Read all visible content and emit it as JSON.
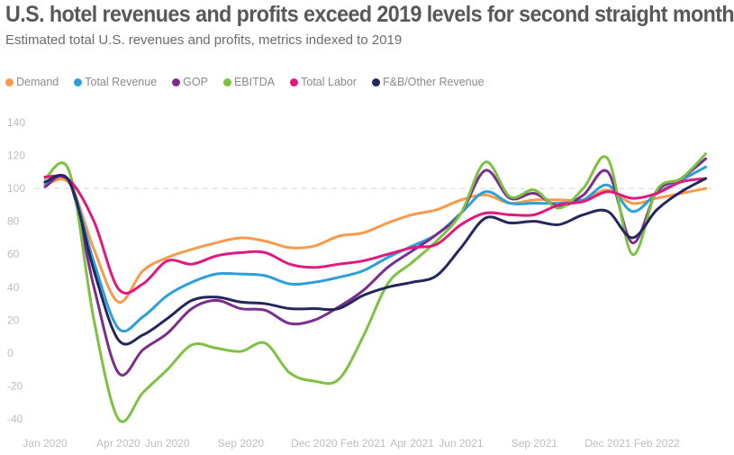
{
  "chart_data": {
    "type": "line",
    "title": "U.S. hotel revenues and profits exceed 2019 levels for second straight month",
    "subtitle": "Estimated total U.S. revenues and profits, metrics indexed to 2019",
    "xlabel": "",
    "ylabel": "",
    "ylim": [
      -40,
      140
    ],
    "yticks": [
      "140",
      "120",
      "100",
      "80",
      "60",
      "40",
      "20",
      "0",
      "-20",
      "-40"
    ],
    "reference_line": 100,
    "legend_position": "top-left",
    "grid": false,
    "x": [
      "Jan 2020",
      "Feb 2020",
      "Mar 2020",
      "Apr 2020",
      "May 2020",
      "Jun 2020",
      "Jul 2020",
      "Aug 2020",
      "Sep 2020",
      "Oct 2020",
      "Nov 2020",
      "Dec 2020",
      "Jan 2021",
      "Feb 2021",
      "Mar 2021",
      "Apr 2021",
      "May 2021",
      "Jun 2021",
      "Jul 2021",
      "Aug 2021",
      "Sep 2021",
      "Oct 2021",
      "Nov 2021",
      "Dec 2021",
      "Jan 2022",
      "Feb 2022",
      "Mar 2022",
      "Apr 2022"
    ],
    "xtick_labels": [
      {
        "index": 0,
        "label": "Jan 2020"
      },
      {
        "index": 3,
        "label": "Apr 2020"
      },
      {
        "index": 5,
        "label": "Jun 2020"
      },
      {
        "index": 8,
        "label": "Sep 2020"
      },
      {
        "index": 11,
        "label": "Dec 2020"
      },
      {
        "index": 13,
        "label": "Feb 2021"
      },
      {
        "index": 15,
        "label": "Apr 2021"
      },
      {
        "index": 17,
        "label": "Jun 2021"
      },
      {
        "index": 20,
        "label": "Sep 2021"
      },
      {
        "index": 23,
        "label": "Dec 2021"
      },
      {
        "index": 25,
        "label": "Feb 2022"
      }
    ],
    "series": [
      {
        "name": "Demand",
        "color": "#F79A4A",
        "values": [
          102,
          103,
          63,
          31,
          50,
          58,
          63,
          67,
          70,
          68,
          64,
          65,
          71,
          73,
          79,
          84,
          87,
          93,
          96,
          91,
          93,
          93,
          93,
          99,
          91,
          94,
          97,
          100
        ]
      },
      {
        "name": "Total Revenue",
        "color": "#2B9FD9",
        "values": [
          103,
          104,
          55,
          15,
          22,
          35,
          43,
          48,
          48,
          47,
          42,
          43,
          46,
          50,
          58,
          65,
          72,
          85,
          98,
          91,
          91,
          91,
          93,
          102,
          86,
          97,
          105,
          113
        ]
      },
      {
        "name": "GOP",
        "color": "#7B2D8E",
        "values": [
          101,
          104,
          40,
          -12,
          2,
          12,
          27,
          32,
          27,
          26,
          18,
          20,
          28,
          38,
          52,
          62,
          72,
          85,
          111,
          94,
          97,
          89,
          96,
          110,
          67,
          98,
          106,
          118
        ]
      },
      {
        "name": "EBITDA",
        "color": "#7DC142",
        "values": [
          106,
          110,
          20,
          -40,
          -24,
          -10,
          5,
          3,
          1,
          6,
          -12,
          -17,
          -16,
          10,
          42,
          55,
          68,
          85,
          116,
          95,
          99,
          88,
          100,
          118,
          60,
          99,
          106,
          121
        ]
      },
      {
        "name": "Total Labor",
        "color": "#E0197D",
        "values": [
          107,
          105,
          80,
          39,
          42,
          56,
          54,
          59,
          61,
          61,
          54,
          52,
          54,
          56,
          60,
          64,
          66,
          78,
          85,
          84,
          84,
          90,
          92,
          98,
          94,
          97,
          104,
          106
        ]
      },
      {
        "name": "F&B/Other Revenue",
        "color": "#24265E",
        "values": [
          104,
          104,
          50,
          8,
          11,
          21,
          32,
          34,
          31,
          30,
          27,
          27,
          27,
          35,
          40,
          43,
          47,
          64,
          82,
          79,
          80,
          78,
          84,
          86,
          70,
          87,
          98,
          106
        ]
      }
    ]
  }
}
